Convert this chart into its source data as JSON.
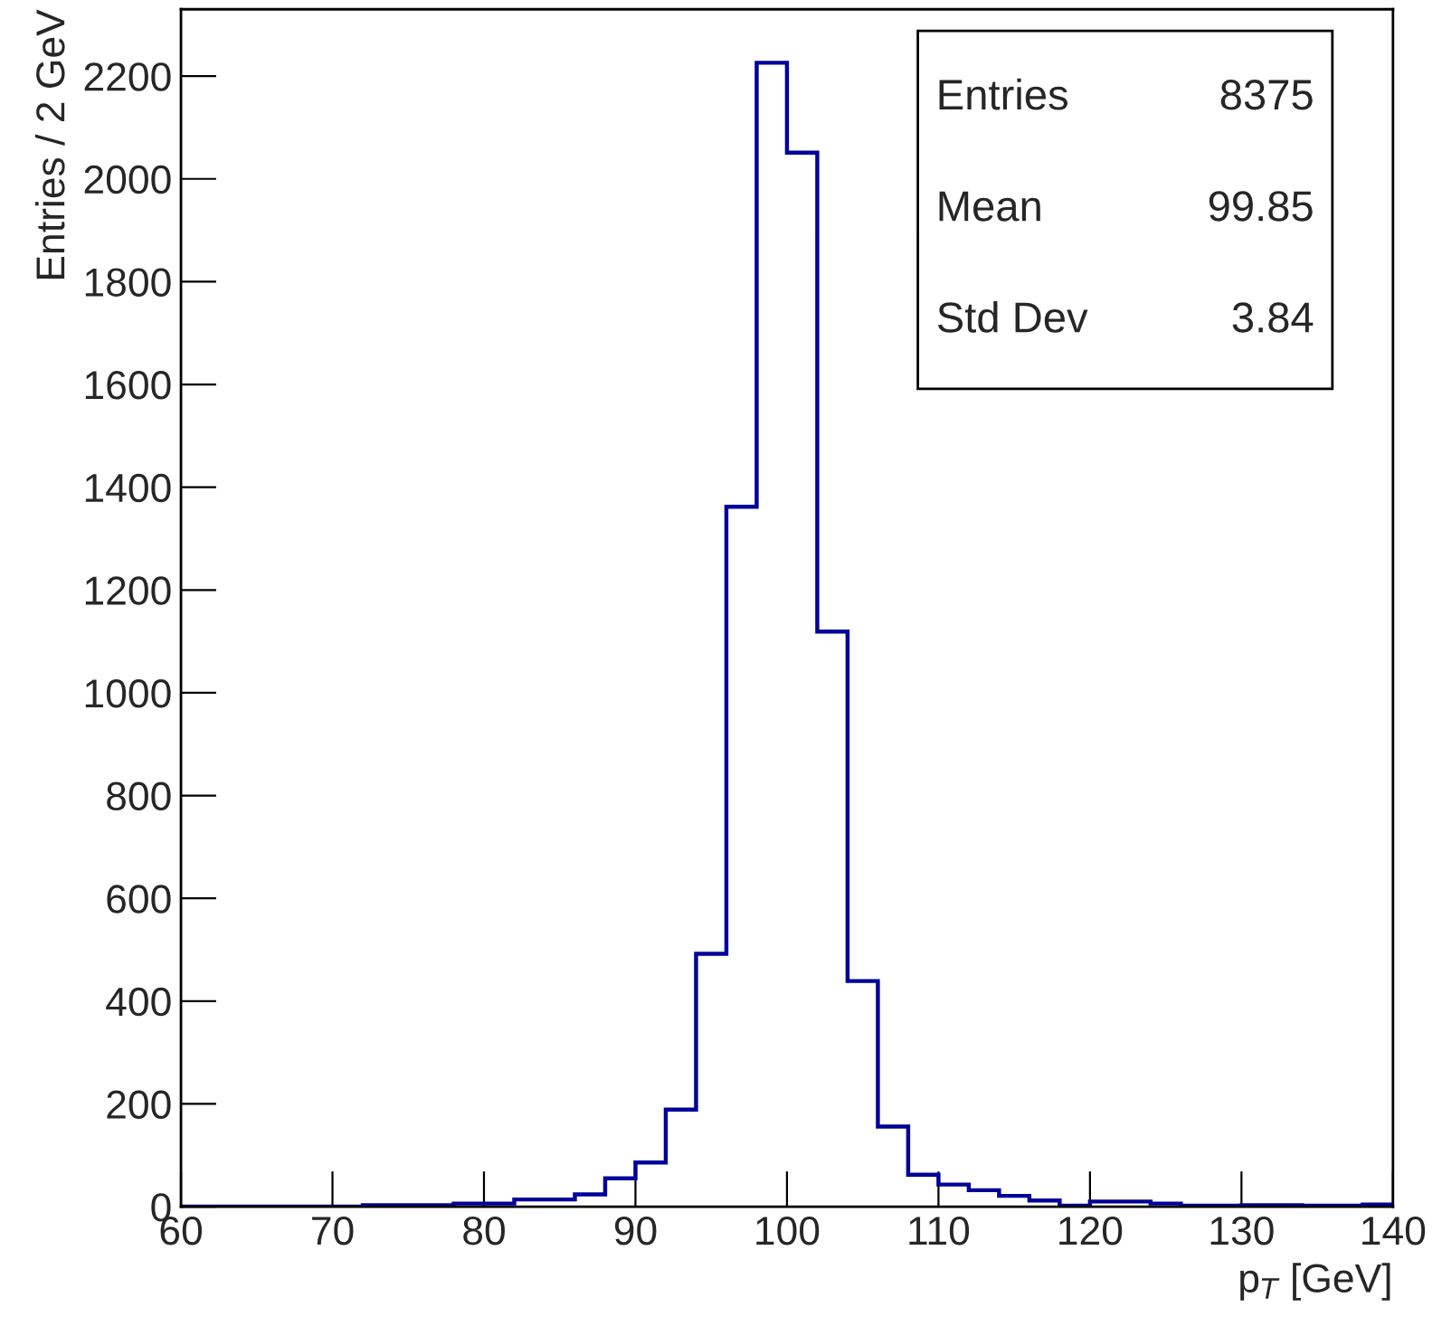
{
  "chart_data": {
    "type": "histogram",
    "xlabel": "p$_{T}$ [GeV]",
    "ylabel": "Entries / 2 GeV",
    "bins": [
      60,
      62,
      64,
      66,
      68,
      70,
      72,
      74,
      76,
      78,
      80,
      82,
      84,
      86,
      88,
      90,
      92,
      94,
      96,
      98,
      100,
      102,
      104,
      106,
      108,
      110,
      112,
      114,
      116,
      118,
      120,
      122,
      124,
      126,
      128,
      130,
      132,
      134,
      136,
      138,
      140
    ],
    "values": [
      0,
      0,
      0,
      0,
      0,
      0,
      3,
      3,
      3,
      6,
      6,
      14,
      14,
      24,
      55,
      86,
      189,
      492,
      1362,
      2226,
      2051,
      1119,
      439,
      156,
      62,
      43,
      32,
      21,
      12,
      2,
      10,
      10,
      6,
      2,
      2,
      3,
      3,
      2,
      2,
      4
    ],
    "color": "#00009a",
    "xlim": [
      60,
      140
    ],
    "ylim": [
      0,
      2330
    ],
    "xticks": [
      60,
      70,
      80,
      90,
      100,
      110,
      120,
      130,
      140
    ],
    "yticks": [
      0,
      200,
      400,
      600,
      800,
      1000,
      1200,
      1400,
      1600,
      1800,
      2000,
      2200
    ],
    "grid": false,
    "annotations": [
      "Entries",
      "8375",
      "Mean",
      "99.85",
      "Std Dev",
      "3.84"
    ]
  }
}
